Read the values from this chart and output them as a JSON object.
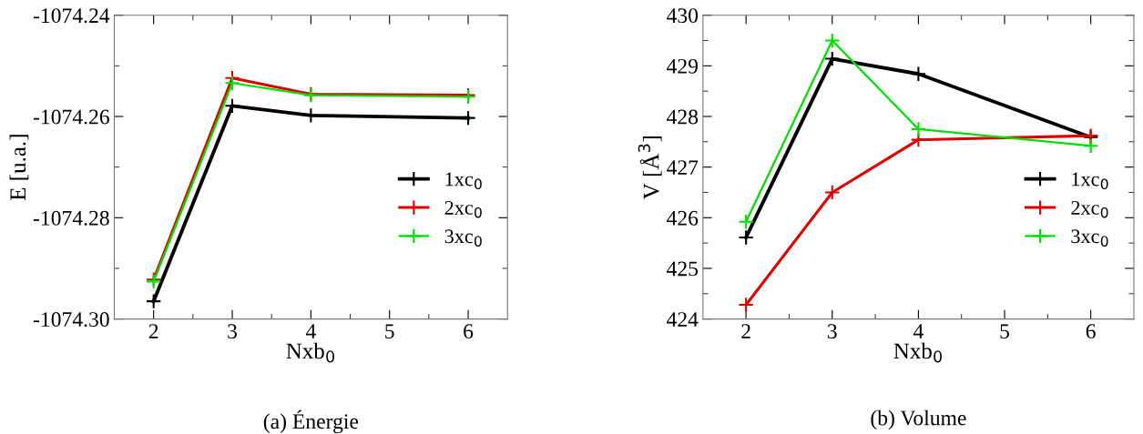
{
  "chart_data": [
    {
      "type": "line",
      "title": "(a) Énergie",
      "xlabel": "Nxb$_{0}$",
      "ylabel": "E [u.a.]",
      "x": [
        2,
        3,
        4,
        6
      ],
      "xlim": [
        1.5,
        6.5
      ],
      "xticks": [
        2,
        3,
        4,
        5,
        6
      ],
      "ylim": [
        -1074.3,
        -1074.24
      ],
      "yticks": [
        {
          "value": -1074.3,
          "label": "-1074.30"
        },
        {
          "value": -1074.28,
          "label": "-1074.28"
        },
        {
          "value": -1074.26,
          "label": "-1074.26"
        },
        {
          "value": -1074.24,
          "label": "-1074.24"
        }
      ],
      "marker": "cross",
      "line_style": "solid",
      "grid": false,
      "legend": "right",
      "series": [
        {
          "name": "1xc$_{0}$",
          "color": "#000000",
          "values": [
            -1074.2965,
            -1074.2579,
            -1074.2598,
            -1074.2603
          ]
        },
        {
          "name": "2xc$_{0}$",
          "color": "#e00000",
          "values": [
            -1074.2922,
            -1074.2524,
            -1074.2556,
            -1074.2558
          ]
        },
        {
          "name": "3xc$_{0}$",
          "color": "#00e000",
          "values": [
            -1074.2926,
            -1074.2534,
            -1074.2558,
            -1074.2561
          ]
        }
      ]
    },
    {
      "type": "line",
      "title": "(b) Volume",
      "xlabel": "Nxb$_{0}$",
      "ylabel": "V [Å$^{3}$]",
      "x": [
        2,
        3,
        4,
        6
      ],
      "xlim": [
        1.5,
        6.5
      ],
      "xticks": [
        2,
        3,
        4,
        5,
        6
      ],
      "ylim": [
        424,
        430
      ],
      "yticks": [
        424,
        425,
        426,
        427,
        428,
        429,
        430
      ],
      "marker": "cross",
      "line_style": "solid",
      "grid": false,
      "legend": "right",
      "series": [
        {
          "name": "1xc$_{0}$",
          "color": "#000000",
          "values": [
            425.61,
            429.14,
            428.84,
            427.59
          ]
        },
        {
          "name": "2xc$_{0}$",
          "color": "#e00000",
          "values": [
            424.28,
            426.5,
            427.54,
            427.62
          ]
        },
        {
          "name": "3xc$_{0}$",
          "color": "#00e000",
          "values": [
            425.92,
            429.5,
            427.75,
            427.42
          ]
        }
      ]
    }
  ]
}
